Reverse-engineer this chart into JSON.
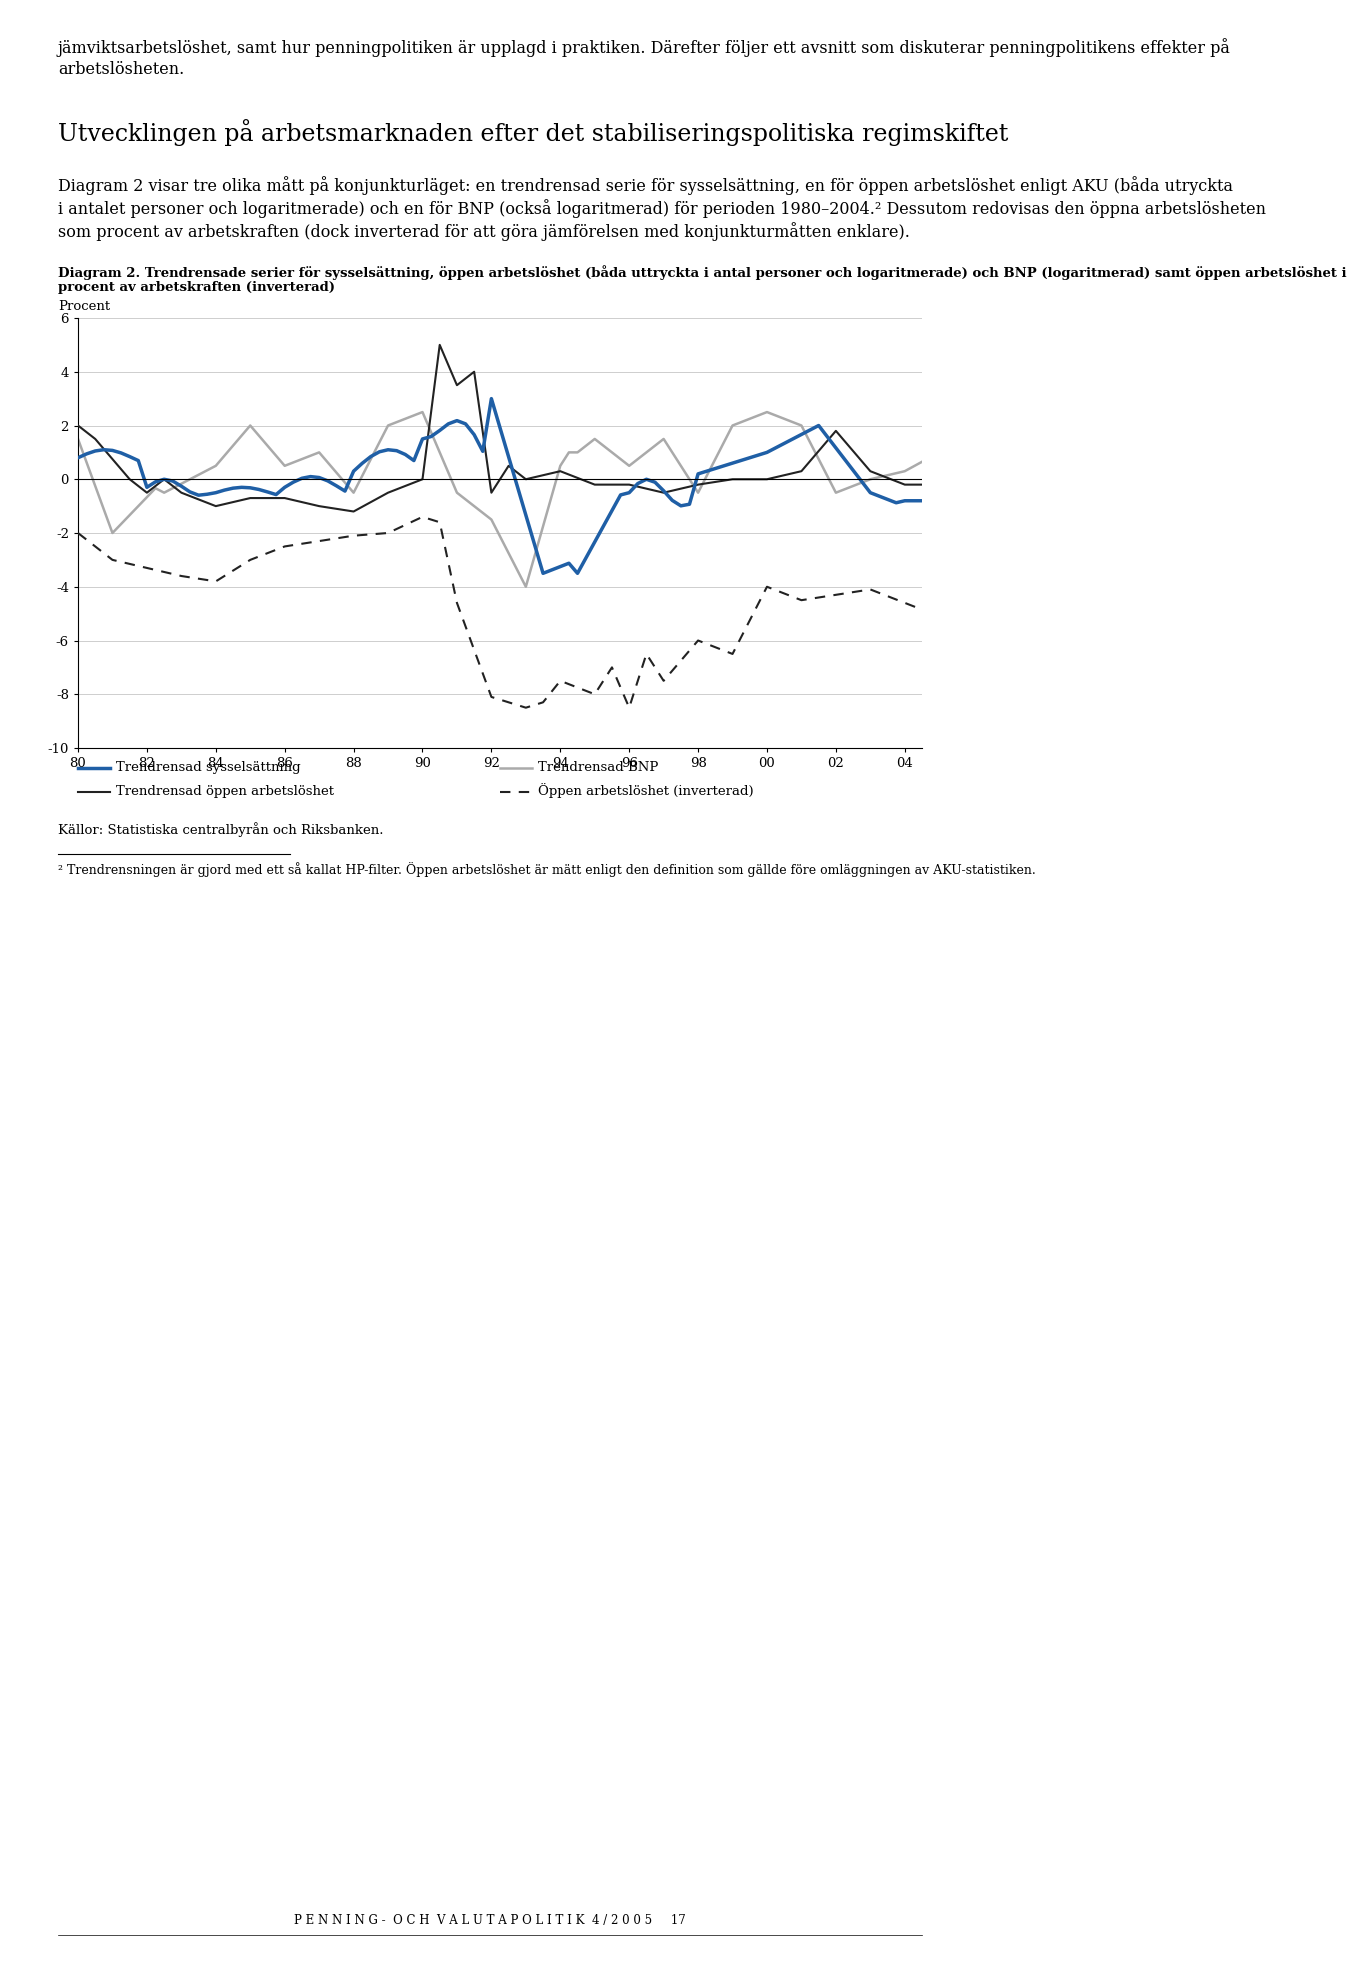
{
  "para1": "jämviktsarbetslöshet, samt hur penningpolitiken är upplagd i praktiken. Därefter följer ett avsnitt som diskuterar penningpolitikens effekter på arbetslösheten.",
  "heading": "Utvecklingen på arbetsmarknaden efter det stabiliseringspolitiska regimskiftet",
  "para2": "Diagram 2 visar tre olika mått på konjunkturläget: en trendrensad serie för sysselsättning, en för öppen arbetslöshet enligt AKU (båda utryckta i antalet personer och logaritmerade) och en för BNP (också logaritmerad) för perioden 1980–2004.² Dessutom redovisas den öppna arbetslösheten som procent av arbetskraften (dock inverterad för att göra jämförelsen med konjunkturmåtten enklare).",
  "diagram_caption": "Diagram 2. Trendrensade serier för sysselsättning, öppen arbetslöshet (båda uttryckta i antal personer och logaritmerade) och BNP (logaritmerad) samt öppen arbetslöshet i procent av arbetskraften (inverterad)",
  "diagram_ylabel": "Procent",
  "ylim": [
    -10,
    6
  ],
  "yticks": [
    -10,
    -8,
    -6,
    -4,
    -2,
    0,
    2,
    4,
    6
  ],
  "xticks": [
    1980,
    1982,
    1984,
    1986,
    1988,
    1990,
    1992,
    1994,
    1996,
    1998,
    2000,
    2002,
    2004
  ],
  "xticklabels": [
    "80",
    "82",
    "84",
    "86",
    "88",
    "90",
    "92",
    "94",
    "96",
    "98",
    "00",
    "02",
    "04"
  ],
  "color_blue": "#1f5fa6",
  "color_gray": "#aaaaaa",
  "color_black": "#222222",
  "source_text": "Källor: Statistiska centralbyrån och Riksbanken.",
  "footnote": "²  Trendrensningen är gjord med ett så kallat HP-filter. Öppen arbetslöshet är mätt enligt den definition som gällde före omläggningen av AKU-statistiken.",
  "footer_text": "P E N N I N G -  O C H  V A L U T A P O L I T I K  4 / 2 0 0 5     17",
  "legend1": "Trendrensad sysselsättning",
  "legend2": "Trendrensad BNP",
  "legend3": "Trendrensad öppen arbetslöshet",
  "legend4": "Öppen arbetslöshet (inverterad)",
  "background_color": "#ffffff"
}
